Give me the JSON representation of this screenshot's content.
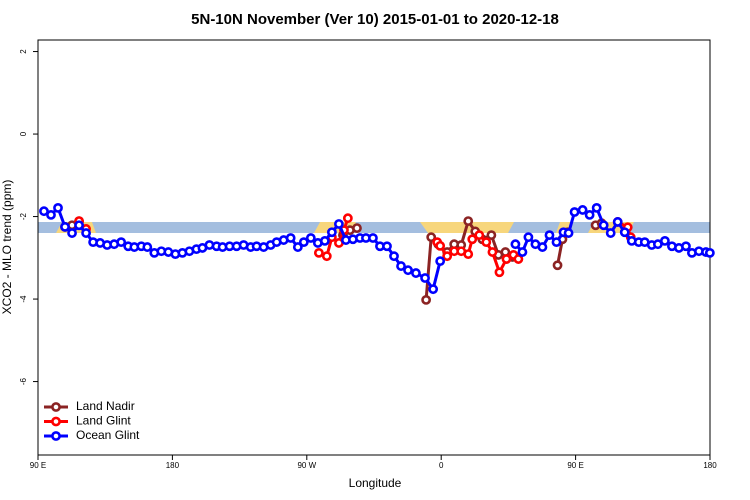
{
  "chart_data": {
    "type": "line",
    "title": "5N-10N November (Ver 10)   2015-01-01 to 2020-12-18",
    "x_label": "Longitude",
    "y_label": "XCO2 - MLO trend (ppm)",
    "xlim": [
      90,
      540
    ],
    "xticks": [
      {
        "value": 90,
        "label": "90 E"
      },
      {
        "value": 180,
        "label": "180"
      },
      {
        "value": 270,
        "label": "90 W"
      },
      {
        "value": 360,
        "label": "0"
      },
      {
        "value": 450,
        "label": "90 E"
      },
      {
        "value": 540,
        "label": "180"
      }
    ],
    "ylim": [
      -7.78,
      2.28
    ],
    "yticks": [
      2,
      0,
      -2,
      -4,
      -6
    ],
    "legend": "bottom-left",
    "series": [
      {
        "name": "Land Nadir",
        "color": "#8b2323",
        "x": [
          108.1,
          112.8,
          117.5,
          null,
          294.2,
          298.9,
          303.6,
          null,
          349.9,
          353.3,
          358.0,
          364.0,
          368.7,
          373.4,
          378.1,
          382.8,
          387.5,
          393.6,
          398.3,
          403.0,
          407.7,
          null,
          437.9,
          441.2,
          444.6,
          null,
          463.4,
          467.4
        ],
        "values": [
          -2.25,
          -2.21,
          -2.11,
          null,
          -2.45,
          -2.33,
          -2.28,
          null,
          -4.02,
          -2.5,
          -2.67,
          -2.86,
          -2.67,
          -2.69,
          -2.11,
          -2.36,
          -2.55,
          -2.45,
          -2.93,
          -2.86,
          -2.98,
          null,
          -3.18,
          -2.55,
          -2.38,
          null,
          -2.21,
          -2.16
        ]
      },
      {
        "name": "Land Glint",
        "color": "#ff0000",
        "x": [
          117.5,
          122.2,
          null,
          278.1,
          283.4,
          286.8,
          291.5,
          294.9,
          297.5,
          null,
          357.3,
          359.3,
          364.0,
          368.7,
          373.4,
          378.1,
          380.8,
          385.5,
          390.2,
          394.3,
          399.0,
          403.7,
          408.4,
          411.7,
          null,
          478.2,
          484.9,
          486.9
        ],
        "values": [
          -2.11,
          -2.3,
          null,
          -2.88,
          -2.96,
          -2.5,
          -2.64,
          -2.33,
          -2.04,
          null,
          -2.62,
          -2.71,
          -2.96,
          -2.84,
          -2.84,
          -2.91,
          -2.55,
          -2.45,
          -2.62,
          -2.86,
          -3.35,
          -3.03,
          -2.93,
          -3.03,
          null,
          -2.13,
          -2.26,
          -2.5
        ]
      },
      {
        "name": "Ocean Glint",
        "color": "#0000ff",
        "x": [
          94.0,
          98.7,
          103.4,
          108.1,
          112.8,
          117.5,
          122.2,
          126.9,
          131.6,
          136.3,
          141.0,
          145.7,
          150.4,
          154.5,
          159.2,
          163.2,
          167.9,
          172.6,
          177.3,
          182.0,
          186.7,
          191.4,
          196.1,
          200.1,
          204.8,
          209.6,
          213.6,
          218.3,
          223.0,
          227.7,
          232.4,
          236.4,
          241.1,
          245.8,
          249.8,
          254.5,
          259.2,
          264.0,
          268.0,
          272.7,
          277.4,
          282.1,
          286.8,
          291.5,
          296.2,
          300.9,
          305.6,
          309.6,
          314.3,
          319.0,
          323.7,
          328.4,
          333.1,
          337.8,
          343.1,
          349.2,
          354.6,
          359.3,
          null,
          409.7,
          414.4,
          418.4,
          423.1,
          427.8,
          432.5,
          437.2,
          441.9,
          445.3,
          449.3,
          454.7,
          459.4,
          464.1,
          468.8,
          473.5,
          478.2,
          482.9,
          487.6,
          492.3,
          496.3,
          501.0,
          505.1,
          509.8,
          514.5,
          519.2,
          523.9,
          527.9,
          532.6,
          537.3,
          539.9
        ],
        "values": [
          -1.87,
          -1.96,
          -1.79,
          -2.25,
          -2.4,
          -2.21,
          -2.4,
          -2.62,
          -2.64,
          -2.69,
          -2.67,
          -2.62,
          -2.72,
          -2.74,
          -2.72,
          -2.74,
          -2.88,
          -2.84,
          -2.86,
          -2.91,
          -2.88,
          -2.84,
          -2.79,
          -2.76,
          -2.69,
          -2.72,
          -2.74,
          -2.72,
          -2.72,
          -2.69,
          -2.74,
          -2.72,
          -2.74,
          -2.69,
          -2.62,
          -2.57,
          -2.52,
          -2.74,
          -2.62,
          -2.52,
          -2.64,
          -2.59,
          -2.38,
          -2.18,
          -2.57,
          -2.55,
          -2.52,
          -2.52,
          -2.52,
          -2.72,
          -2.72,
          -2.96,
          -3.2,
          -3.3,
          -3.37,
          -3.49,
          -3.76,
          -3.08,
          null,
          -2.67,
          -2.86,
          -2.5,
          -2.67,
          -2.74,
          -2.45,
          -2.62,
          -2.38,
          -2.4,
          -1.89,
          -1.84,
          -1.96,
          -1.79,
          -2.21,
          -2.4,
          -2.13,
          -2.38,
          -2.59,
          -2.62,
          -2.62,
          -2.69,
          -2.67,
          -2.59,
          -2.72,
          -2.76,
          -2.72,
          -2.88,
          -2.84,
          -2.86,
          -2.88
        ]
      }
    ]
  }
}
